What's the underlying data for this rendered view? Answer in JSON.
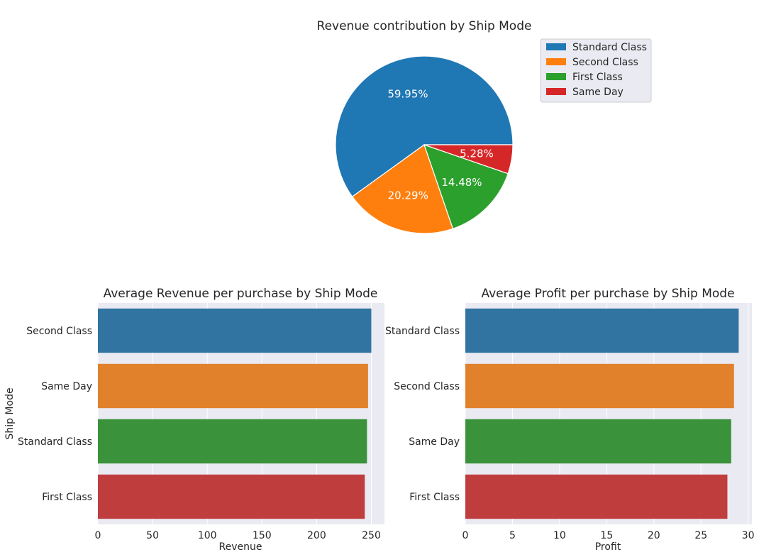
{
  "chart_data": [
    {
      "type": "pie",
      "title": "Revenue contribution by Ship Mode",
      "slices": [
        {
          "label": "Standard Class",
          "value": 59.95,
          "display": "59.95%",
          "color": "#1f77b4"
        },
        {
          "label": "Second Class",
          "value": 20.29,
          "display": "20.29%",
          "color": "#ff7f0e"
        },
        {
          "label": "First Class",
          "value": 14.48,
          "display": "14.48%",
          "color": "#2ca02c"
        },
        {
          "label": "Same Day",
          "value": 5.28,
          "display": "5.28%",
          "color": "#d62728"
        }
      ],
      "legend_placement": "top-right"
    },
    {
      "type": "bar",
      "orientation": "horizontal",
      "title": "Average Revenue per purchase by Ship Mode",
      "xlabel": "Revenue",
      "ylabel": "Ship Mode",
      "categories": [
        "Second Class",
        "Same Day",
        "Standard Class",
        "First Class"
      ],
      "values": [
        250,
        247,
        246,
        244
      ],
      "colors": [
        "#3274a1",
        "#e1812c",
        "#3a923a",
        "#c03d3e"
      ],
      "xlim": [
        0,
        262
      ],
      "xticks": [
        0,
        50,
        100,
        150,
        200,
        250
      ],
      "xtick_labels": [
        "0",
        "50",
        "100",
        "150",
        "200",
        "250"
      ],
      "grid": true
    },
    {
      "type": "bar",
      "orientation": "horizontal",
      "title": "Average Profit per purchase by Ship Mode",
      "xlabel": "Profit",
      "ylabel": "",
      "categories": [
        "Standard Class",
        "Second Class",
        "Same Day",
        "First Class"
      ],
      "values": [
        29.0,
        28.5,
        28.2,
        27.8
      ],
      "colors": [
        "#3274a1",
        "#e1812c",
        "#3a923a",
        "#c03d3e"
      ],
      "xlim": [
        0,
        30.4
      ],
      "xticks": [
        0,
        5,
        10,
        15,
        20,
        25,
        30
      ],
      "xtick_labels": [
        "0",
        "5",
        "10",
        "15",
        "20",
        "25",
        "30"
      ],
      "grid": true
    }
  ]
}
